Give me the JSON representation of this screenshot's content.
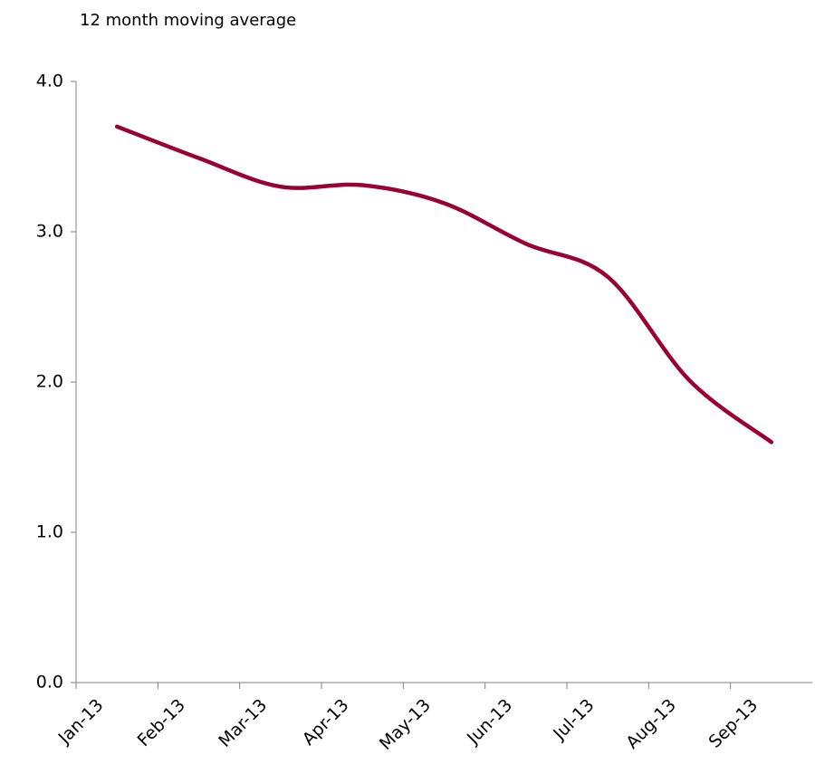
{
  "chart_data": {
    "type": "line",
    "title": "12 month moving average",
    "categories": [
      "Jan-13",
      "Feb-13",
      "Mar-13",
      "Apr-13",
      "May-13",
      "Jun-13",
      "Jul-13",
      "Aug-13",
      "Sep-13"
    ],
    "series": [
      {
        "color": "#990033",
        "values": [
          3.7,
          3.49,
          3.3,
          3.31,
          3.19,
          2.92,
          2.7,
          2.01,
          1.6
        ]
      }
    ],
    "ylim": [
      0,
      4
    ],
    "yticks": [
      {
        "value": 0,
        "label": "0.0"
      },
      {
        "value": 1,
        "label": "1.0"
      },
      {
        "value": 2,
        "label": "2.0"
      },
      {
        "value": 3,
        "label": "3.0"
      },
      {
        "value": 4,
        "label": "4.0"
      }
    ],
    "grid": false
  }
}
